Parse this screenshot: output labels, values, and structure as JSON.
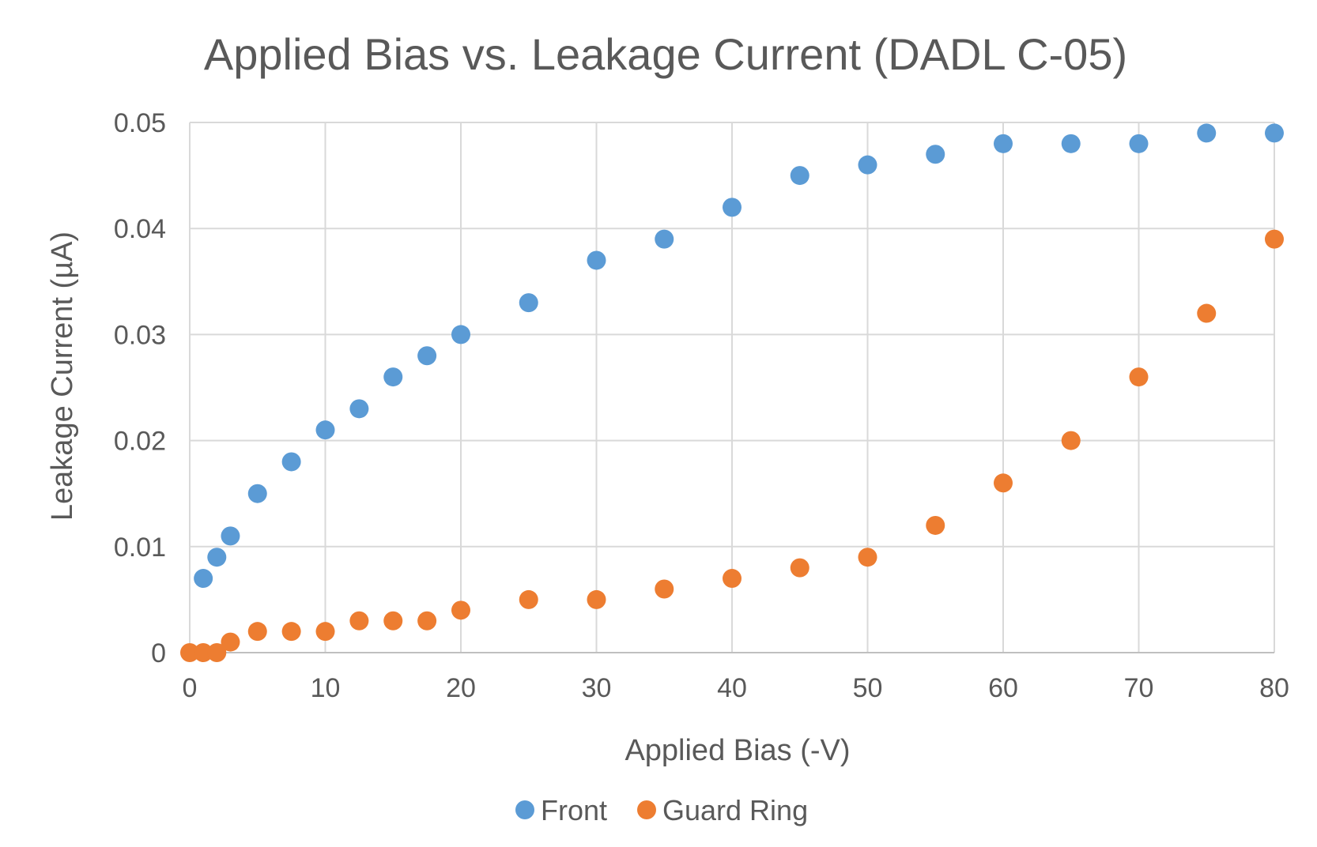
{
  "chart_data": {
    "type": "scatter",
    "title": "Applied Bias vs. Leakage Current (DADL C-05)",
    "xlabel": "Applied Bias (-V)",
    "ylabel": "Leakage Current (µA)",
    "xlim": [
      0,
      80
    ],
    "ylim": [
      0,
      0.05
    ],
    "x_ticks": [
      0,
      10,
      20,
      30,
      40,
      50,
      60,
      70,
      80
    ],
    "x_tick_labels": [
      "0",
      "10",
      "20",
      "30",
      "40",
      "50",
      "60",
      "70",
      "80"
    ],
    "y_ticks": [
      0,
      0.01,
      0.02,
      0.03,
      0.04,
      0.05
    ],
    "y_tick_labels": [
      "0",
      "0.01",
      "0.02",
      "0.03",
      "0.04",
      "0.05"
    ],
    "grid": true,
    "legend_position": "bottom",
    "series": [
      {
        "name": "Front",
        "color": "#5b9bd5",
        "points": [
          {
            "x": 1,
            "y": 0.007
          },
          {
            "x": 2,
            "y": 0.009
          },
          {
            "x": 3,
            "y": 0.011
          },
          {
            "x": 5,
            "y": 0.015
          },
          {
            "x": 7.5,
            "y": 0.018
          },
          {
            "x": 10,
            "y": 0.021
          },
          {
            "x": 12.5,
            "y": 0.023
          },
          {
            "x": 15,
            "y": 0.026
          },
          {
            "x": 17.5,
            "y": 0.028
          },
          {
            "x": 20,
            "y": 0.03
          },
          {
            "x": 25,
            "y": 0.033
          },
          {
            "x": 30,
            "y": 0.037
          },
          {
            "x": 35,
            "y": 0.039
          },
          {
            "x": 40,
            "y": 0.042
          },
          {
            "x": 45,
            "y": 0.045
          },
          {
            "x": 50,
            "y": 0.046
          },
          {
            "x": 55,
            "y": 0.047
          },
          {
            "x": 60,
            "y": 0.048
          },
          {
            "x": 65,
            "y": 0.048
          },
          {
            "x": 70,
            "y": 0.048
          },
          {
            "x": 75,
            "y": 0.049
          },
          {
            "x": 80,
            "y": 0.049
          }
        ]
      },
      {
        "name": "Guard Ring",
        "color": "#ed7d31",
        "points": [
          {
            "x": 0,
            "y": 0
          },
          {
            "x": 1,
            "y": 0
          },
          {
            "x": 2,
            "y": 0
          },
          {
            "x": 3,
            "y": 0.001
          },
          {
            "x": 5,
            "y": 0.002
          },
          {
            "x": 7.5,
            "y": 0.002
          },
          {
            "x": 10,
            "y": 0.002
          },
          {
            "x": 12.5,
            "y": 0.003
          },
          {
            "x": 15,
            "y": 0.003
          },
          {
            "x": 17.5,
            "y": 0.003
          },
          {
            "x": 20,
            "y": 0.004
          },
          {
            "x": 25,
            "y": 0.005
          },
          {
            "x": 30,
            "y": 0.005
          },
          {
            "x": 35,
            "y": 0.006
          },
          {
            "x": 40,
            "y": 0.007
          },
          {
            "x": 45,
            "y": 0.008
          },
          {
            "x": 50,
            "y": 0.009
          },
          {
            "x": 55,
            "y": 0.012
          },
          {
            "x": 60,
            "y": 0.016
          },
          {
            "x": 65,
            "y": 0.02
          },
          {
            "x": 70,
            "y": 0.026
          },
          {
            "x": 75,
            "y": 0.032
          },
          {
            "x": 80,
            "y": 0.039
          }
        ]
      }
    ]
  }
}
